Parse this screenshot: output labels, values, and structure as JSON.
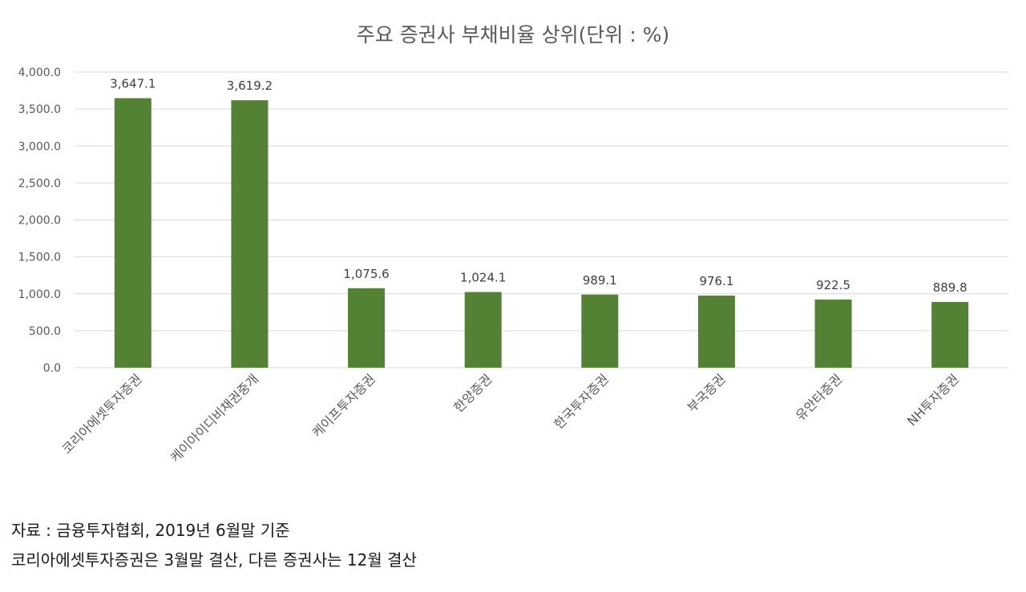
{
  "chart_data": {
    "type": "bar",
    "title": "주요 증권사 부채비율 상위(단위 : %)",
    "xlabel": "",
    "ylabel": "",
    "categories": [
      "코리아에셋투자증권",
      "케이아이디비채권중개",
      "케이프투자증권",
      "한양증권",
      "한국투자증권",
      "부국증권",
      "유안타증권",
      "NH투자증권"
    ],
    "series": [
      {
        "values": [
          3647.1,
          3619.2,
          1075.6,
          1024.1,
          989.1,
          976.1,
          922.5,
          889.8
        ]
      }
    ],
    "value_labels": [
      "3,647.1",
      "3,619.2",
      "1,075.6",
      "1,024.1",
      "989.1",
      "976.1",
      "922.5",
      "889.8"
    ],
    "ylim": [
      0,
      4000
    ],
    "y_ticks": [
      0,
      500,
      1000,
      1500,
      2000,
      2500,
      3000,
      3500,
      4000
    ],
    "y_tick_labels": [
      "0.0",
      "500.0",
      "1,000.0",
      "1,500.0",
      "2,000.0",
      "2,500.0",
      "3,000.0",
      "3,500.0",
      "4,000.0"
    ],
    "grid": true,
    "legend": "none",
    "bar_color": "#548235",
    "grid_color": "#d9d9d9"
  },
  "notes": {
    "source": "자료 : 금융투자협회, 2019년 6월말 기준",
    "fiscal": "코리아에셋투자증권은 3월말 결산, 다른 증권사는 12월 결산"
  }
}
